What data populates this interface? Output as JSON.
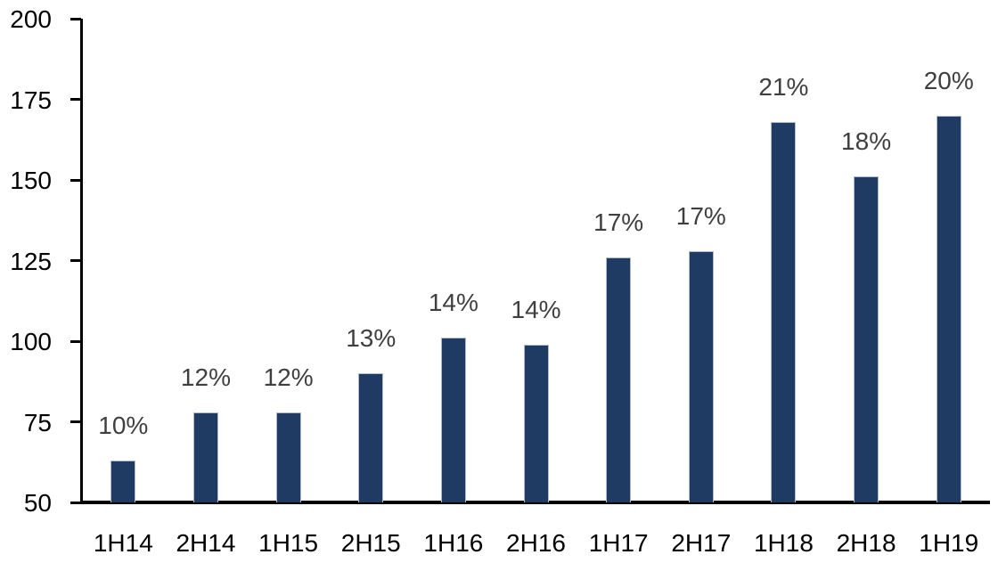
{
  "chart_data": {
    "type": "bar",
    "categories": [
      "1H14",
      "2H14",
      "1H15",
      "2H15",
      "1H16",
      "2H16",
      "1H17",
      "2H17",
      "1H18",
      "2H18",
      "1H19"
    ],
    "values": [
      63,
      78,
      78,
      90,
      101,
      99,
      126,
      128,
      168,
      151,
      170
    ],
    "data_labels": [
      "10%",
      "12%",
      "12%",
      "13%",
      "14%",
      "14%",
      "17%",
      "17%",
      "21%",
      "18%",
      "20%"
    ],
    "title": "",
    "xlabel": "",
    "ylabel": "",
    "ylim": [
      50,
      200
    ],
    "yticks": [
      50,
      75,
      100,
      125,
      150,
      175,
      200
    ],
    "grid": "off",
    "legend": "none",
    "colors": {
      "bar_fill": "#1F3A63",
      "bar_border": "#AEBBD1",
      "data_label": "#3F3F3F",
      "axis": "#000000",
      "tick_label": "#000000",
      "background": "#FFFFFF"
    }
  }
}
